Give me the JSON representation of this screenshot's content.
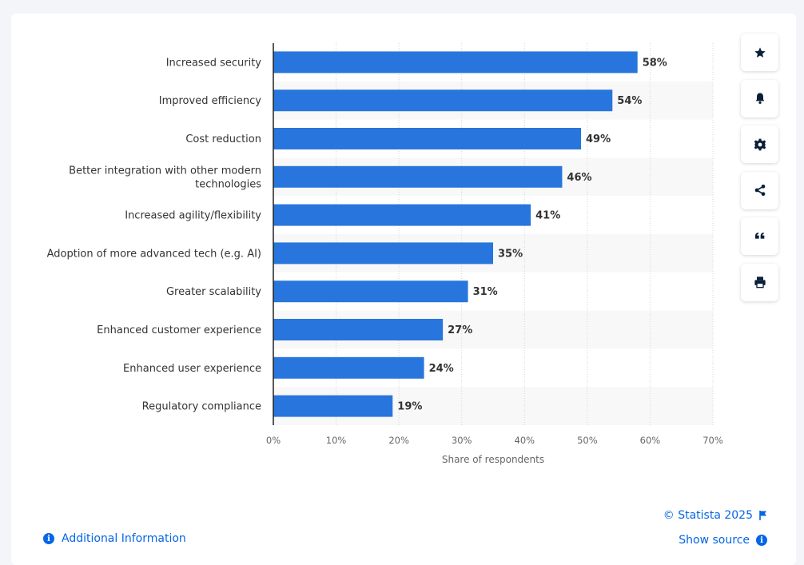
{
  "chart_data": {
    "type": "bar",
    "orientation": "horizontal",
    "categories": [
      "Increased security",
      "Improved efficiency",
      "Cost reduction",
      "Better integration with other modern technologies",
      "Increased agility/flexibility",
      "Adoption of more advanced tech (e.g. AI)",
      "Greater scalability",
      "Enhanced customer experience",
      "Enhanced user experience",
      "Regulatory compliance"
    ],
    "category_lines": [
      [
        "Increased security"
      ],
      [
        "Improved efficiency"
      ],
      [
        "Cost reduction"
      ],
      [
        "Better integration with other modern",
        "technologies"
      ],
      [
        "Increased agility/flexibility"
      ],
      [
        "Adoption of more advanced tech (e.g. AI)"
      ],
      [
        "Greater scalability"
      ],
      [
        "Enhanced customer experience"
      ],
      [
        "Enhanced user experience"
      ],
      [
        "Regulatory compliance"
      ]
    ],
    "values": [
      58,
      54,
      49,
      46,
      41,
      35,
      31,
      27,
      24,
      19
    ],
    "value_labels": [
      "58%",
      "54%",
      "49%",
      "46%",
      "41%",
      "35%",
      "31%",
      "27%",
      "24%",
      "19%"
    ],
    "x_ticks": [
      0,
      10,
      20,
      30,
      40,
      50,
      60,
      70
    ],
    "x_tick_labels": [
      "0%",
      "10%",
      "20%",
      "30%",
      "40%",
      "50%",
      "60%",
      "70%"
    ],
    "xlim": [
      0,
      70
    ],
    "xlabel": "Share of respondents",
    "ylabel": "",
    "title": "",
    "grid": true,
    "bar_color": "#2876dd",
    "alt_row_color": "#f8f8f8"
  },
  "footer": {
    "credit": "© Statista 2025",
    "show_source": "Show source",
    "additional_info": "Additional Information"
  },
  "toolbar": {
    "icons": [
      "star-icon",
      "bell-icon",
      "gear-icon",
      "share-icon",
      "quote-icon",
      "print-icon"
    ]
  },
  "colors": {
    "accent": "#0666e5",
    "text": "#333333",
    "axis": "#222222"
  }
}
